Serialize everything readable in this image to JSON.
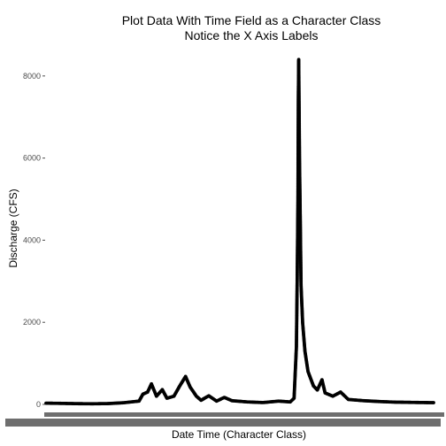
{
  "chart_data": {
    "type": "scatter",
    "title_lines": [
      "Plot Data With Time Field as a Character Class",
      "Notice the X Axis Labels"
    ],
    "xlabel": "Date Time (Character Class)",
    "ylabel": "Discharge (CFS)",
    "ylim": [
      0,
      8600
    ],
    "y_ticks": [
      0,
      2000,
      4000,
      6000,
      8000
    ],
    "y_tick_labels": [
      "0",
      "2000",
      "4000",
      "6000",
      "8000"
    ],
    "x_axis_note": "x tick labels overlap into an unreadable dark band",
    "grid": false,
    "legend": "none",
    "point_color": "#000000",
    "x_index_range": [
      0,
      1000
    ],
    "series": [
      {
        "values": [
          [
            0,
            30
          ],
          [
            40,
            25
          ],
          [
            80,
            18
          ],
          [
            120,
            15
          ],
          [
            160,
            20
          ],
          [
            200,
            40
          ],
          [
            240,
            80
          ],
          [
            250,
            250
          ],
          [
            262,
            300
          ],
          [
            272,
            500
          ],
          [
            285,
            200
          ],
          [
            300,
            360
          ],
          [
            312,
            150
          ],
          [
            330,
            200
          ],
          [
            345,
            450
          ],
          [
            360,
            680
          ],
          [
            372,
            420
          ],
          [
            388,
            200
          ],
          [
            400,
            100
          ],
          [
            420,
            210
          ],
          [
            440,
            80
          ],
          [
            460,
            170
          ],
          [
            480,
            90
          ],
          [
            520,
            60
          ],
          [
            560,
            45
          ],
          [
            600,
            80
          ],
          [
            630,
            60
          ],
          [
            640,
            150
          ],
          [
            646,
            1400
          ],
          [
            648,
            3000
          ],
          [
            650,
            5000
          ],
          [
            651,
            7500
          ],
          [
            652,
            8400
          ],
          [
            654,
            6000
          ],
          [
            656,
            4500
          ],
          [
            658,
            2900
          ],
          [
            662,
            2000
          ],
          [
            668,
            1300
          ],
          [
            676,
            800
          ],
          [
            690,
            450
          ],
          [
            700,
            350
          ],
          [
            712,
            600
          ],
          [
            720,
            280
          ],
          [
            740,
            200
          ],
          [
            760,
            300
          ],
          [
            780,
            120
          ],
          [
            820,
            90
          ],
          [
            860,
            70
          ],
          [
            900,
            55
          ],
          [
            950,
            48
          ],
          [
            1000,
            42
          ]
        ]
      }
    ]
  }
}
